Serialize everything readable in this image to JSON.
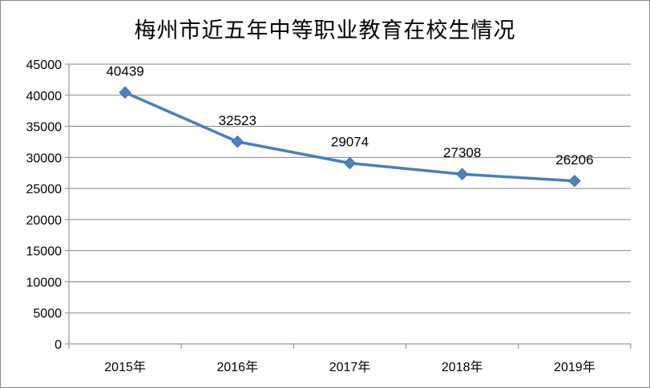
{
  "chart_data": {
    "type": "line",
    "title": "梅州市近五年中等职业教育在校生情况",
    "categories": [
      "2015年",
      "2016年",
      "2017年",
      "2018年",
      "2019年"
    ],
    "values": [
      40439,
      32523,
      29074,
      27308,
      26206
    ],
    "data_labels": [
      "40439",
      "32523",
      "29074",
      "27308",
      "26206"
    ],
    "ylim": [
      0,
      45000
    ],
    "yticks": [
      "0",
      "5000",
      "10000",
      "15000",
      "20000",
      "25000",
      "30000",
      "35000",
      "40000",
      "45000"
    ],
    "grid": true,
    "marker": "diamond",
    "line_color": "#4A7EBB",
    "marker_color": "#4F81BD",
    "gridline_color": "#868686"
  }
}
